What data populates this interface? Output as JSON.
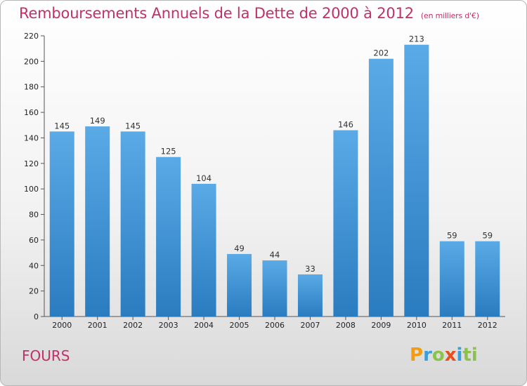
{
  "header": {
    "title": "Remboursements Annuels de la Dette de 2000 à 2012",
    "subtitle": "(en milliers d'€)"
  },
  "footer": {
    "commune": "FOURS",
    "logo_letters": [
      "P",
      "r",
      "o",
      "x",
      "i",
      "ti"
    ]
  },
  "colors": {
    "bar_top": "#5aaae6",
    "bar_bottom": "#2a7cc0",
    "title": "#c0306a"
  },
  "chart_data": {
    "type": "bar",
    "title": "Remboursements Annuels de la Dette de 2000 à 2012",
    "subtitle": "(en milliers d'€)",
    "xlabel": "",
    "ylabel": "",
    "categories": [
      "2000",
      "2001",
      "2002",
      "2003",
      "2004",
      "2005",
      "2006",
      "2007",
      "2008",
      "2009",
      "2010",
      "2011",
      "2012"
    ],
    "values": [
      145,
      149,
      145,
      125,
      104,
      49,
      44,
      33,
      146,
      202,
      213,
      59,
      59
    ],
    "ylim": [
      0,
      220
    ],
    "yticks": [
      0,
      20,
      40,
      60,
      80,
      100,
      120,
      140,
      160,
      180,
      200,
      220
    ],
    "grid": false,
    "legend": "none"
  }
}
